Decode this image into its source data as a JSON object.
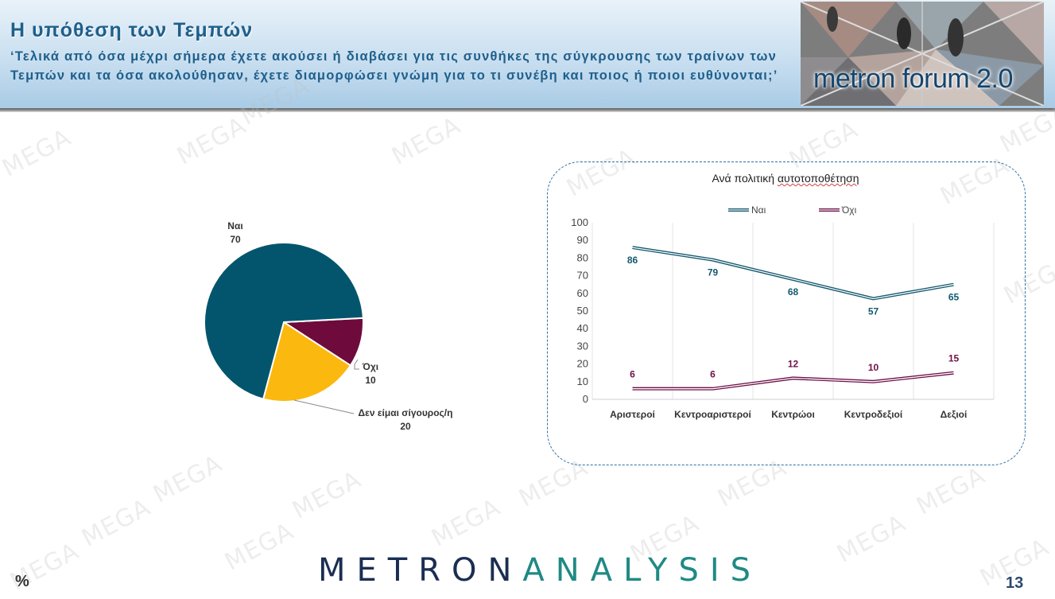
{
  "header": {
    "title": "Η υπόθεση των Τεμπών",
    "question": "‘Τελικά από όσα μέχρι σήμερα έχετε ακούσει ή διαβάσει για τις συνθήκες της σύγκρουσης των τραίνων των Τεμπών και τα όσα ακολούθησαν, έχετε διαμορφώσει γνώμη για το τι συνέβη και ποιος ή ποιοι ευθύνονται;’",
    "logo_text": "metron forum 2.0"
  },
  "watermark_text": "MEGA",
  "chart_data": [
    {
      "type": "pie",
      "slices": [
        {
          "label": "Ναι",
          "value": 70,
          "color": "#02556c"
        },
        {
          "label": "Όχι",
          "value": 10,
          "color": "#6e0a3c"
        },
        {
          "label": "Δεν είμαι σίγουρος/η",
          "value": 20,
          "color": "#fbb80f"
        }
      ]
    },
    {
      "type": "line",
      "title_plain": "Ανά πολιτική ",
      "title_underlined": "αυτοτοποθέτηση",
      "categories": [
        "Αριστεροί",
        "Κεντροαριστεροί",
        "Κεντρώοι",
        "Κεντροδεξιοί",
        "Δεξιοί"
      ],
      "series": [
        {
          "name": "Ναι",
          "values": [
            86,
            79,
            68,
            57,
            65
          ],
          "color": "#13596f"
        },
        {
          "name": "Όχι",
          "values": [
            6,
            6,
            12,
            10,
            15
          ],
          "color": "#6e1048"
        }
      ],
      "ylim": [
        0,
        100
      ],
      "yticks": [
        "0",
        "10",
        "20",
        "30",
        "40",
        "50",
        "60",
        "70",
        "80",
        "90",
        "100"
      ],
      "grid": "vertical",
      "legend": "top"
    }
  ],
  "footer": {
    "logo_part1": "METRON",
    "logo_part2": "ANALYSIS",
    "percent": "%",
    "page_number": "13"
  }
}
